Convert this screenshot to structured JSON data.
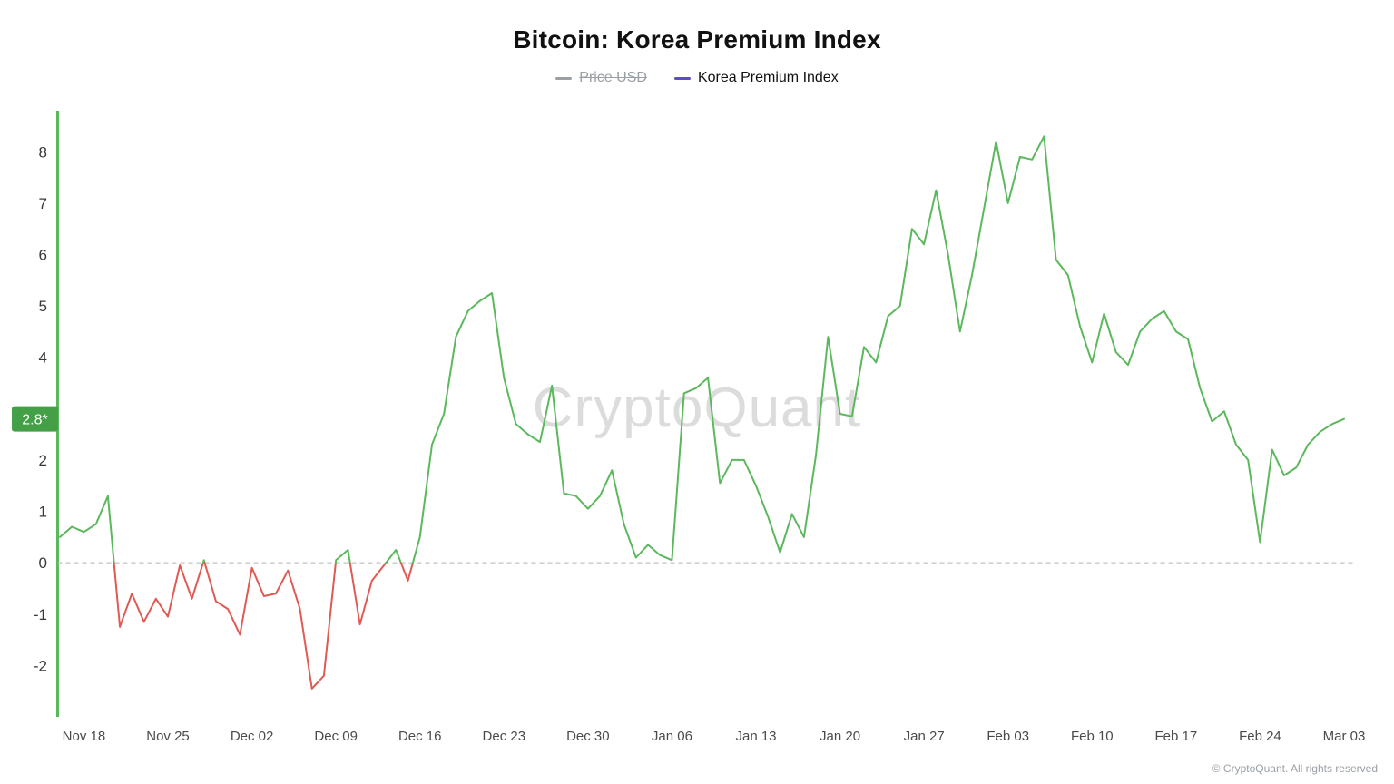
{
  "header": {
    "title": "Bitcoin: Korea Premium Index"
  },
  "legend": [
    {
      "label": "Price USD",
      "color": "#9aa0a6",
      "disabled": true
    },
    {
      "label": "Korea Premium Index",
      "color": "#5b4dc8",
      "disabled": false
    }
  ],
  "badge": {
    "text": "2.8*",
    "color": "#43a047"
  },
  "watermark": "CryptoQuant",
  "footer": "© CryptoQuant. All rights reserved",
  "chart_data": {
    "type": "line",
    "title": "Bitcoin: Korea Premium Index",
    "series_name": "Korea Premium Index",
    "hidden_series": "Price USD",
    "x_tick_labels": [
      "Nov 18",
      "Nov 25",
      "Dec 02",
      "Dec 09",
      "Dec 16",
      "Dec 23",
      "Dec 30",
      "Jan 06",
      "Jan 13",
      "Jan 20",
      "Jan 27",
      "Feb 03",
      "Feb 10",
      "Feb 17",
      "Feb 24",
      "Mar 03"
    ],
    "x_tick_indices": [
      2,
      9,
      16,
      23,
      30,
      37,
      44,
      51,
      58,
      65,
      72,
      79,
      86,
      93,
      100,
      107
    ],
    "y_ticks": [
      8,
      7,
      6,
      5,
      4,
      2,
      1,
      0,
      -1,
      -2
    ],
    "ylim": [
      -3.0,
      8.8
    ],
    "zero_line": true,
    "grid": false,
    "legend_position": "top",
    "colors": {
      "positive": "#5cb85c",
      "negative": "#e05a54",
      "axis": "#5cb85c",
      "zero_line": "#b3b3b3"
    },
    "values": [
      0.5,
      0.7,
      0.6,
      0.75,
      1.3,
      -1.25,
      -0.6,
      -1.15,
      -0.7,
      -1.05,
      -0.05,
      -0.7,
      0.05,
      -0.75,
      -0.9,
      -1.4,
      -0.1,
      -0.65,
      -0.6,
      -0.15,
      -0.9,
      -2.45,
      -2.2,
      0.05,
      0.25,
      -1.2,
      -0.35,
      -0.05,
      0.25,
      -0.35,
      0.5,
      2.3,
      2.9,
      4.4,
      4.9,
      5.1,
      5.25,
      3.6,
      2.7,
      2.5,
      2.35,
      3.45,
      1.35,
      1.3,
      1.05,
      1.3,
      1.8,
      0.75,
      0.1,
      0.35,
      0.15,
      0.05,
      3.3,
      3.4,
      3.6,
      1.55,
      2.0,
      2.0,
      1.5,
      0.9,
      0.2,
      0.95,
      0.5,
      2.1,
      4.4,
      2.9,
      2.85,
      4.2,
      3.9,
      4.8,
      5.0,
      6.5,
      6.2,
      7.25,
      6.0,
      4.5,
      5.6,
      6.9,
      8.2,
      7.0,
      7.9,
      7.85,
      8.3,
      5.9,
      5.6,
      4.6,
      3.9,
      4.85,
      4.1,
      3.85,
      4.5,
      4.75,
      4.9,
      4.5,
      4.35,
      3.4,
      2.75,
      2.95,
      2.3,
      2.0,
      0.4,
      2.2,
      1.7,
      1.85,
      2.3,
      2.55,
      2.7,
      2.8
    ],
    "last_value": 2.8
  }
}
